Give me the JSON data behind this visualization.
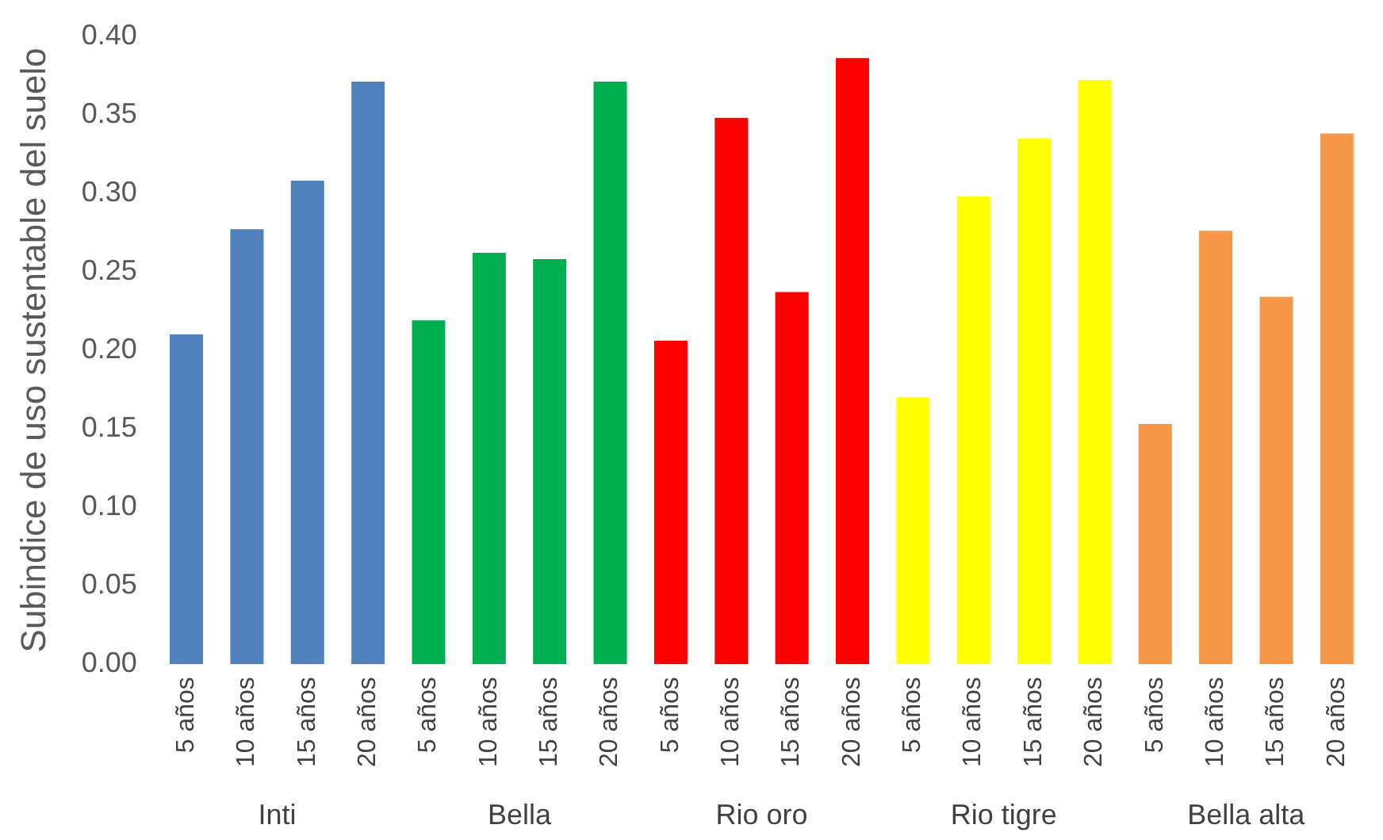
{
  "chart_data": {
    "type": "bar",
    "ylabel": "Subindice de uso sustentable del suelo",
    "categories": [
      "5 años",
      "10 años",
      "15 años",
      "20 años",
      "5 años",
      "10 años",
      "15 años",
      "20 años",
      "5 años",
      "10 años",
      "15 años",
      "20 años",
      "5 años",
      "10 años",
      "15 años",
      "20 años",
      "5 años",
      "10 años",
      "15 años",
      "20 años"
    ],
    "values": [
      0.21,
      0.277,
      0.308,
      0.371,
      0.219,
      0.262,
      0.258,
      0.371,
      0.206,
      0.348,
      0.237,
      0.386,
      0.17,
      0.298,
      0.335,
      0.372,
      0.153,
      0.276,
      0.234,
      0.338
    ],
    "colors": [
      "#4f81bd",
      "#4f81bd",
      "#4f81bd",
      "#4f81bd",
      "#00b050",
      "#00b050",
      "#00b050",
      "#00b050",
      "#ff0000",
      "#ff0000",
      "#ff0000",
      "#ff0000",
      "#ffff00",
      "#ffff00",
      "#ffff00",
      "#ffff00",
      "#f79646",
      "#f79646",
      "#f79646",
      "#f79646"
    ],
    "annotations": [
      "Inti",
      "Bella",
      "Rio oro",
      "Rio tigre",
      "Bella alta"
    ],
    "ylim": [
      0,
      0.4
    ],
    "yticks": [
      {
        "value": 0,
        "label": "0.00"
      },
      0.05,
      {
        "value": 0.1,
        "label": "0.10"
      },
      0.15,
      {
        "value": 0.2,
        "label": "0.20"
      },
      0.25,
      {
        "value": 0.3,
        "label": "0.30"
      },
      0.35,
      {
        "value": 0.4,
        "label": "0.40"
      }
    ],
    "grid": false,
    "legend": false
  }
}
